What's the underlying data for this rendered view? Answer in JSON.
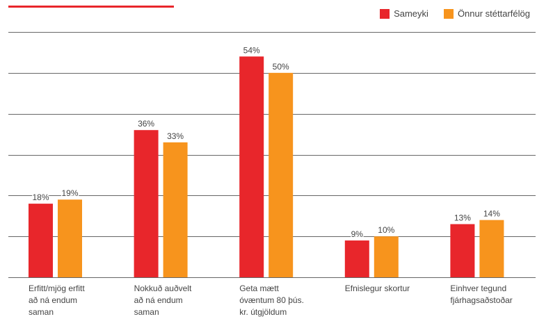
{
  "colors": {
    "accent": "#e8262b",
    "series1": "#e8262b",
    "series2": "#f7941d",
    "grid": "#666666"
  },
  "chart_data": {
    "type": "bar",
    "categories": [
      [
        "Erfitt/mjög erfitt",
        "að ná endum",
        "saman"
      ],
      [
        "Nokkuð auðvelt",
        "að ná endum",
        "saman"
      ],
      [
        "Geta mætt",
        "óvæntum 80 þús.",
        "kr. útgjöldum"
      ],
      [
        "Efnislegur skortur"
      ],
      [
        "Einhver tegund",
        "fjárhagsaðstoðar"
      ]
    ],
    "series": [
      {
        "name": "Sameyki",
        "color": "#e8262b",
        "values": [
          18,
          36,
          54,
          9,
          13
        ],
        "labels": [
          "18%",
          "36%",
          "54%",
          "9%",
          "13%"
        ]
      },
      {
        "name": "Önnur stéttarfélög",
        "color": "#f7941d",
        "values": [
          19,
          33,
          50,
          10,
          14
        ],
        "labels": [
          "19%",
          "33%",
          "50%",
          "10%",
          "14%"
        ]
      }
    ],
    "ylim": [
      0,
      60
    ],
    "ygrid_step": 10,
    "grid": true,
    "legend_position": "top-right"
  }
}
